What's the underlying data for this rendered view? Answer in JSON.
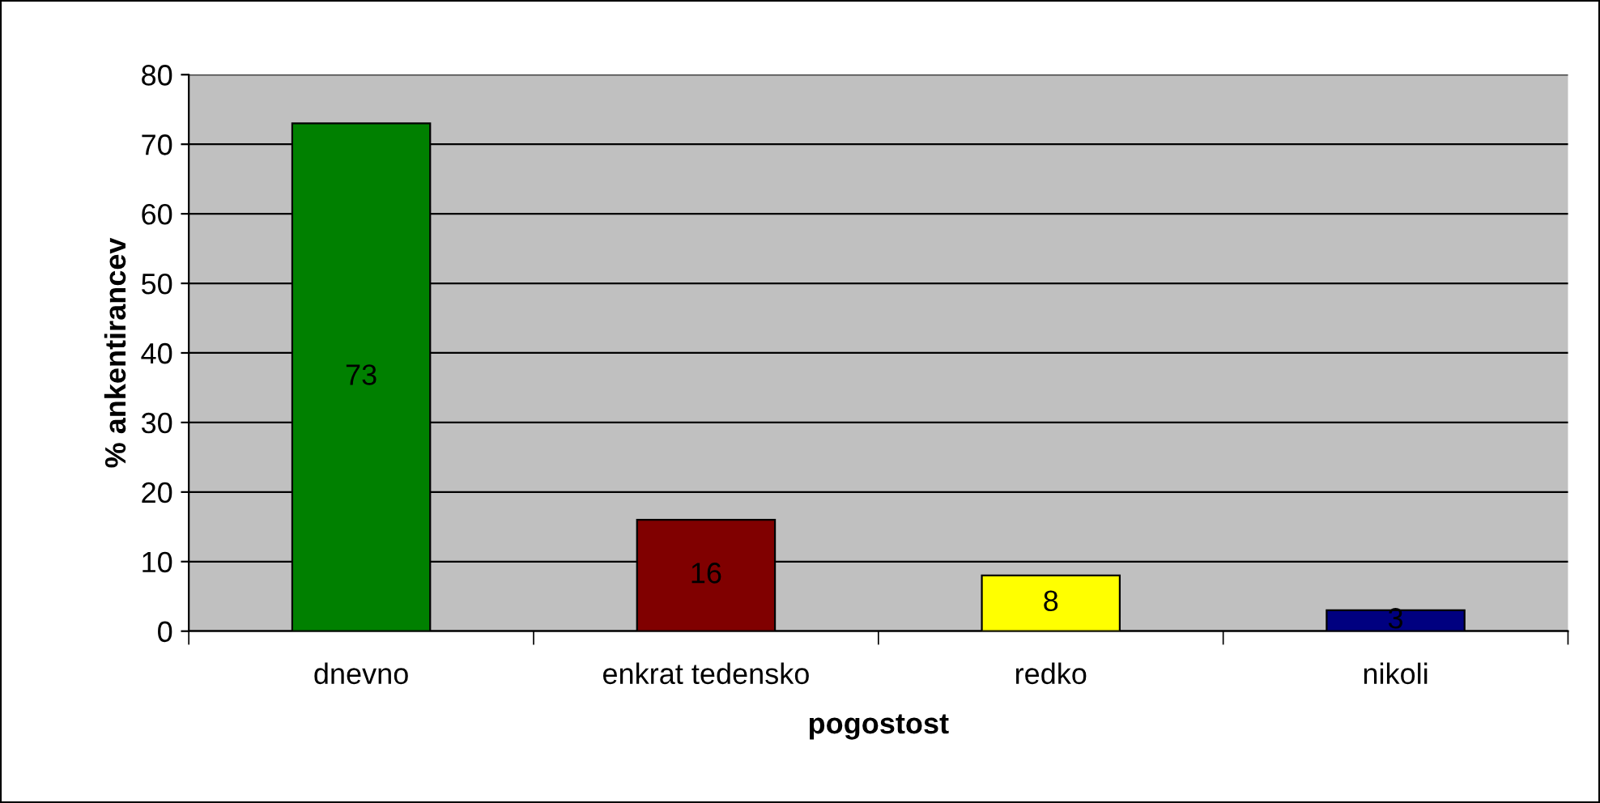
{
  "chart_data": {
    "type": "bar",
    "xlabel": "pogostost",
    "ylabel": "% ankentirancev",
    "categories": [
      "dnevno",
      "enkrat tedensko",
      "redko",
      "nikoli"
    ],
    "values": [
      73,
      16,
      8,
      3
    ],
    "colors": [
      "#008000",
      "#800000",
      "#ffff00",
      "#000080"
    ],
    "ylim": [
      0,
      80
    ],
    "yticks": [
      0,
      10,
      20,
      30,
      40,
      50,
      60,
      70,
      80
    ],
    "grid": "y",
    "legend": false,
    "data_labels": true
  }
}
